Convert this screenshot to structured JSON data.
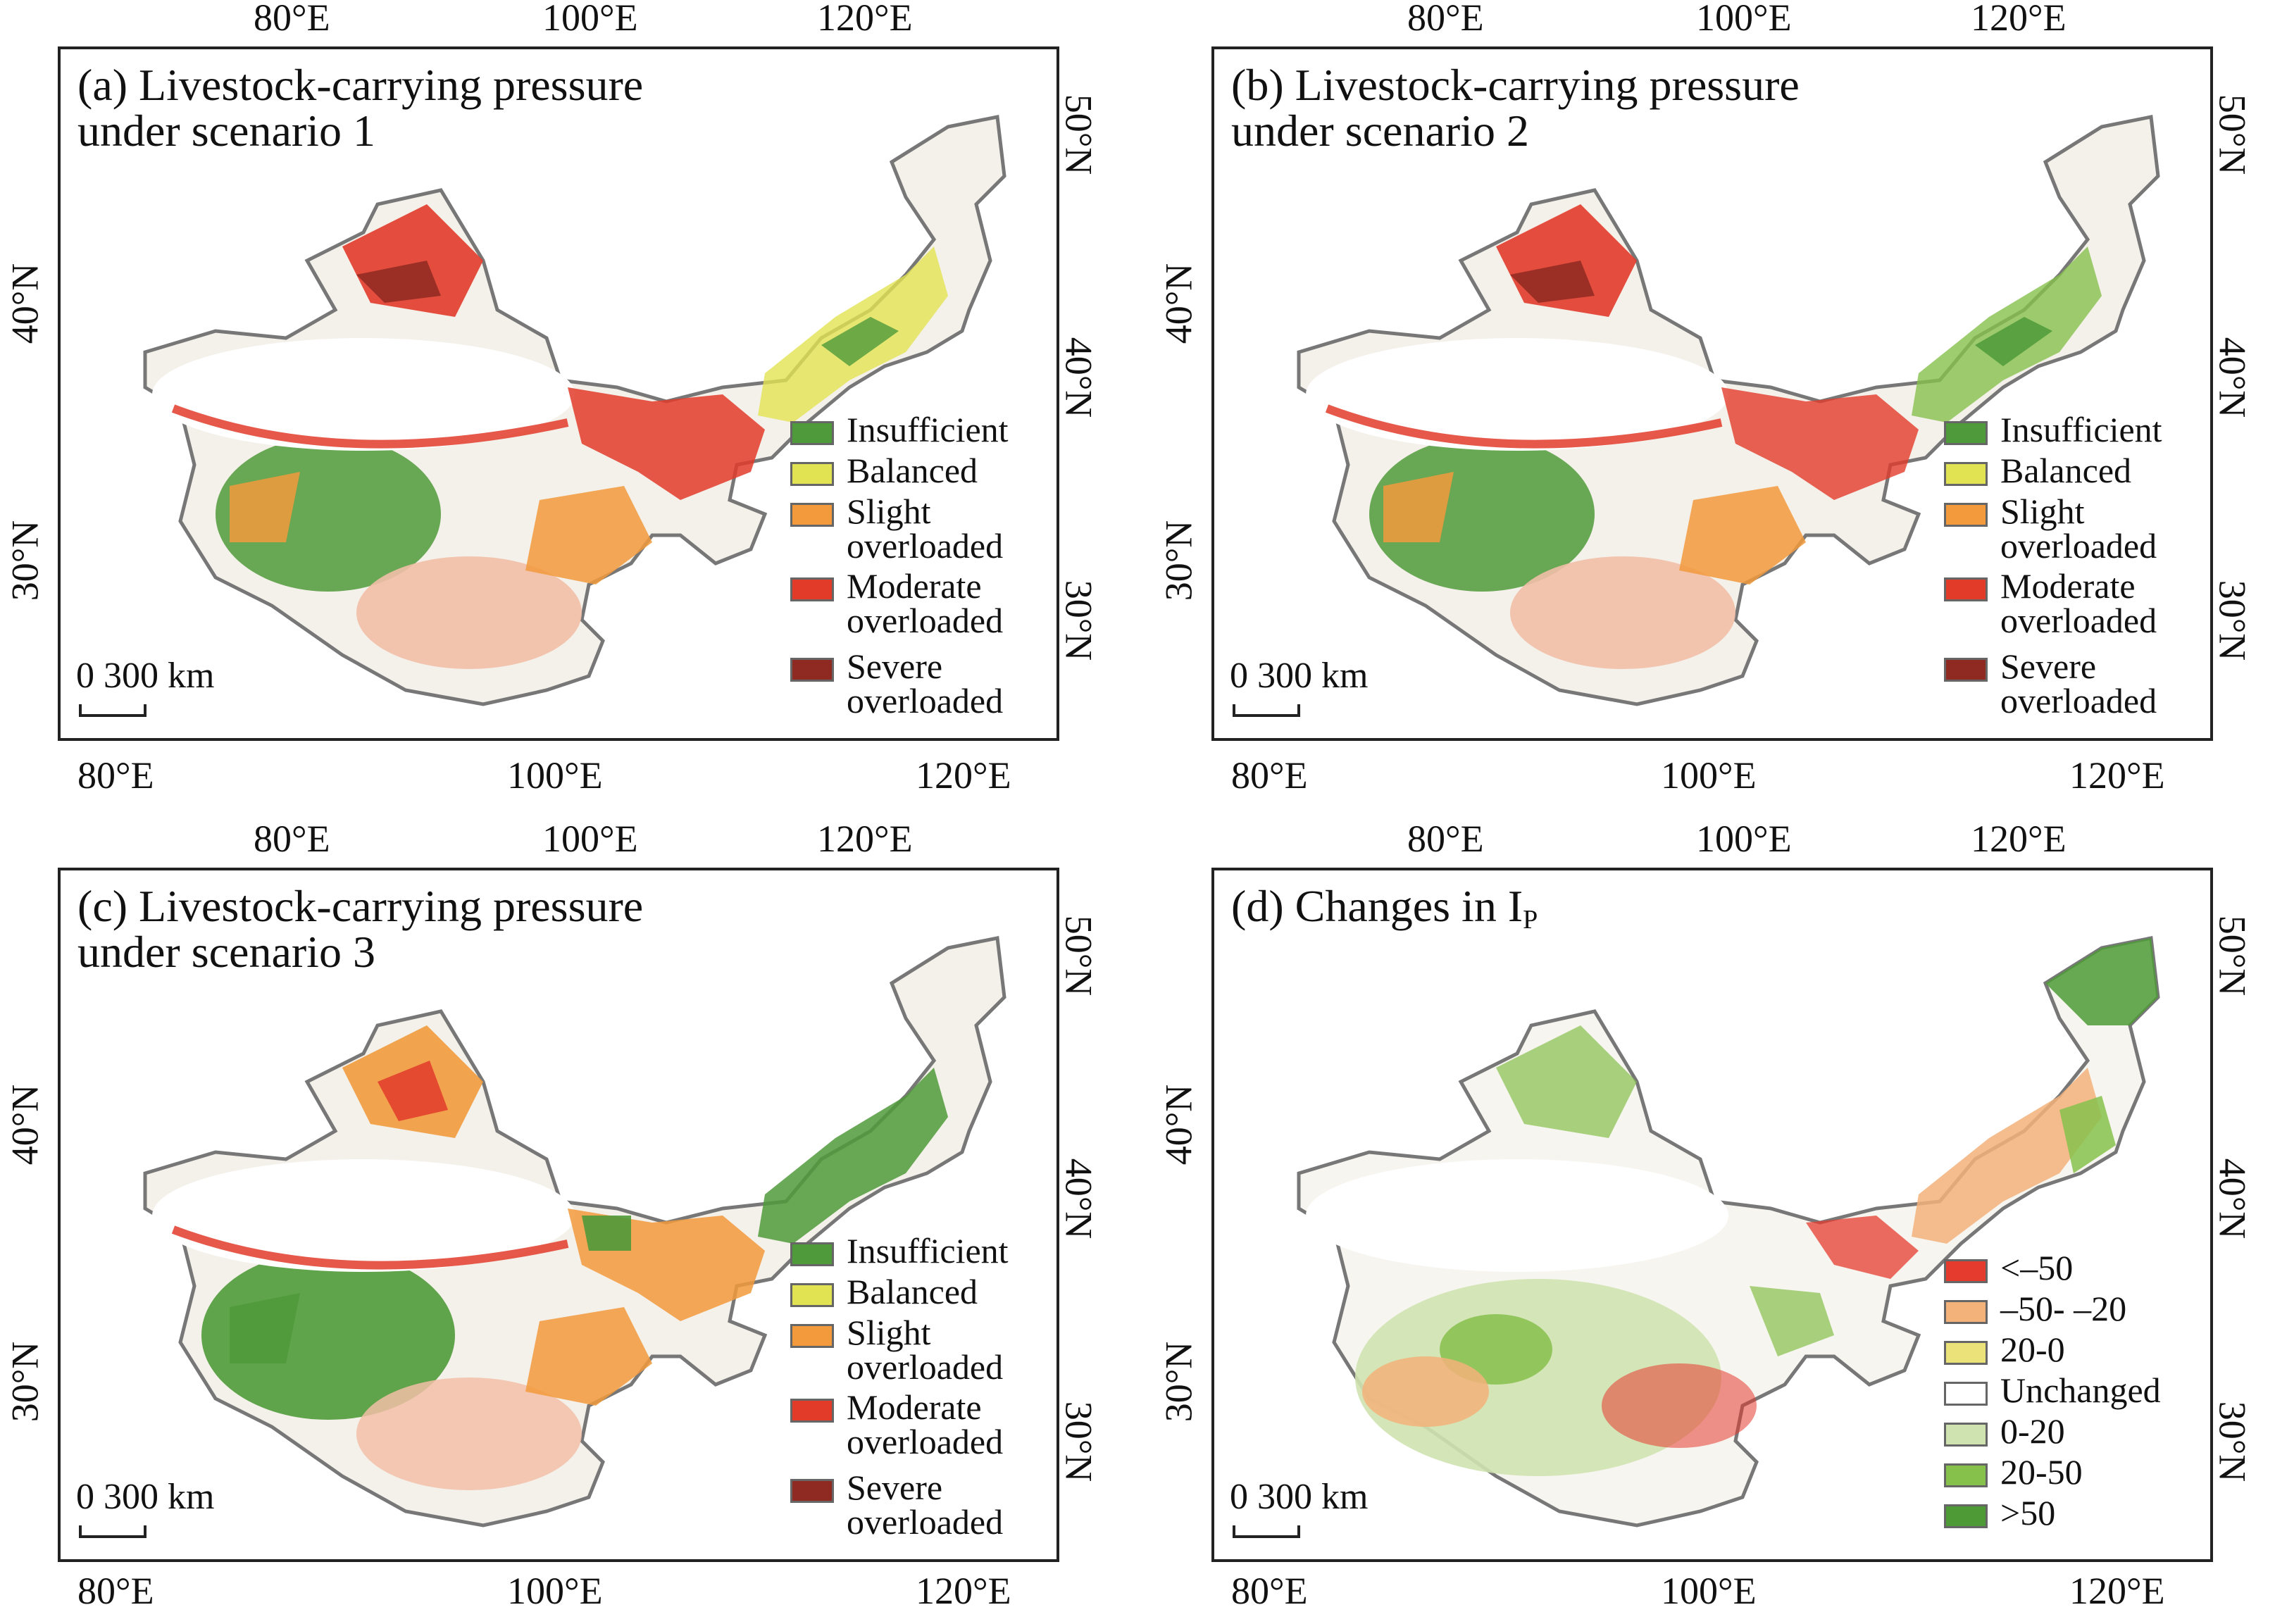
{
  "colors": {
    "insufficient": "#4f9a3a",
    "balanced": "#e2e352",
    "slight": "#f29a3c",
    "moderate": "#e23b2a",
    "severe": "#8e2a22",
    "change_lt_m50": "#e53b2f",
    "change_m50_m20": "#f3b27a",
    "change_20_0": "#ece27a",
    "change_unchanged": "#ffffff",
    "change_0_20": "#cfe3b0",
    "change_20_50": "#86c14c",
    "change_gt50": "#4d9a37"
  },
  "axis_labels": {
    "top": [
      "80°E",
      "100°E",
      "120°E"
    ],
    "bottom": [
      "80°E",
      "100°E",
      "120°E"
    ],
    "left": [
      "40°N",
      "30°N"
    ],
    "right": [
      "50°N",
      "40°N",
      "30°N"
    ]
  },
  "scale_label": "0 300 km",
  "panels": [
    {
      "title": "(a) Livestock-carrying pressure\nunder scenario 1",
      "legend": [
        {
          "label": "Insufficient",
          "color": "#4f9a3a"
        },
        {
          "label": "Balanced",
          "color": "#e2e352"
        },
        {
          "label": "Slight\noverloaded",
          "color": "#f29a3c"
        },
        {
          "label": "Moderate\noverloaded",
          "color": "#e23b2a"
        },
        {
          "label": "Severe\noverloaded",
          "color": "#8e2a22"
        }
      ]
    },
    {
      "title": "(b) Livestock-carrying pressure\nunder scenario 2",
      "legend": [
        {
          "label": "Insufficient",
          "color": "#4f9a3a"
        },
        {
          "label": "Balanced",
          "color": "#e2e352"
        },
        {
          "label": "Slight\noverloaded",
          "color": "#f29a3c"
        },
        {
          "label": "Moderate\noverloaded",
          "color": "#e23b2a"
        },
        {
          "label": "Severe\noverloaded",
          "color": "#8e2a22"
        }
      ]
    },
    {
      "title": "(c) Livestock-carrying pressure\nunder scenario 3",
      "legend": [
        {
          "label": "Insufficient",
          "color": "#4f9a3a"
        },
        {
          "label": "Balanced",
          "color": "#e2e352"
        },
        {
          "label": "Slight\noverloaded",
          "color": "#f29a3c"
        },
        {
          "label": "Moderate\noverloaded",
          "color": "#e23b2a"
        },
        {
          "label": "Severe\noverloaded",
          "color": "#8e2a22"
        }
      ]
    },
    {
      "title": "(d) Changes in I",
      "title_subscript": "P",
      "legend": [
        {
          "label": "<–50",
          "color": "#e53b2f"
        },
        {
          "label": "–50- –20",
          "color": "#f3b27a"
        },
        {
          "label": "20-0",
          "color": "#ece27a"
        },
        {
          "label": "Unchanged",
          "color": "#ffffff"
        },
        {
          "label": "0-20",
          "color": "#cfe3b0"
        },
        {
          "label": "20-50",
          "color": "#86c14c"
        },
        {
          "label": ">50",
          "color": "#4d9a37"
        }
      ]
    }
  ]
}
